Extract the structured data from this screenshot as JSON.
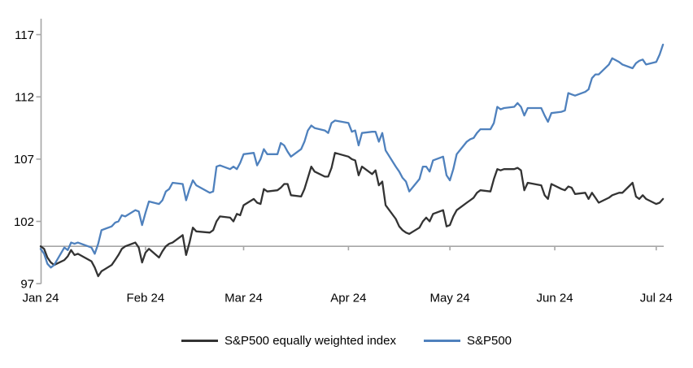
{
  "chart_data": {
    "type": "line",
    "grid": false,
    "legend_position": "bottom-center",
    "x_axis": {
      "tick_labels": [
        "Jan 24",
        "Feb 24",
        "Mar 24",
        "Apr 24",
        "May 24",
        "Jun 24",
        "Jul 24"
      ],
      "tick_day_offsets": [
        0,
        31,
        60,
        91,
        121,
        152,
        182
      ],
      "unit": "days since Jan 1, 2024"
    },
    "y_axis": {
      "tick_labels": [
        "97",
        "102",
        "107",
        "112",
        "117"
      ],
      "ticks": [
        97,
        102,
        107,
        112,
        117
      ],
      "min": 97,
      "max": 117
    },
    "baseline_value": 100,
    "index_base": 100,
    "day_offsets": [
      0,
      1,
      2,
      3,
      4,
      7,
      8,
      9,
      10,
      11,
      15,
      16,
      17,
      18,
      21,
      22,
      23,
      24,
      25,
      28,
      29,
      30,
      31,
      32,
      35,
      36,
      37,
      38,
      39,
      42,
      43,
      44,
      45,
      46,
      50,
      51,
      52,
      53,
      56,
      57,
      58,
      59,
      60,
      63,
      64,
      65,
      66,
      67,
      70,
      71,
      72,
      73,
      74,
      77,
      78,
      79,
      80,
      81,
      84,
      85,
      86,
      87,
      91,
      92,
      93,
      94,
      95,
      98,
      99,
      100,
      101,
      102,
      105,
      106,
      107,
      108,
      109,
      112,
      113,
      114,
      115,
      116,
      119,
      120,
      121,
      122,
      123,
      126,
      127,
      128,
      129,
      130,
      133,
      134,
      135,
      136,
      137,
      140,
      141,
      142,
      143,
      144,
      148,
      149,
      150,
      151,
      154,
      155,
      156,
      157,
      158,
      161,
      162,
      163,
      164,
      165,
      168,
      169,
      171,
      172,
      175,
      176,
      177,
      178,
      179,
      182,
      183,
      184
    ],
    "series": [
      {
        "name": "S&P500 equally weighted index",
        "key": "sp500-equal-weighted",
        "color": "#333333",
        "values": [
          100,
          99.8,
          99.1,
          98.7,
          98.5,
          98.9,
          99.2,
          99.7,
          99.3,
          99.4,
          98.8,
          98.3,
          97.6,
          98.0,
          98.5,
          98.9,
          99.3,
          99.8,
          100.0,
          100.3,
          99.9,
          98.7,
          99.5,
          99.8,
          99.1,
          99.6,
          100.0,
          100.2,
          100.3,
          100.9,
          99.3,
          100.3,
          101.5,
          101.2,
          101.1,
          101.3,
          102.0,
          102.4,
          102.3,
          102.0,
          102.6,
          102.5,
          103.3,
          103.8,
          103.5,
          103.4,
          104.6,
          104.4,
          104.5,
          104.7,
          105.0,
          105.0,
          104.1,
          104.0,
          104.6,
          105.5,
          106.4,
          106.0,
          105.6,
          105.6,
          106.3,
          107.5,
          107.2,
          107.0,
          106.9,
          105.7,
          106.4,
          105.8,
          106.1,
          104.9,
          105.2,
          103.3,
          102.2,
          101.6,
          101.3,
          101.1,
          101.0,
          101.5,
          102.0,
          102.3,
          102.0,
          102.6,
          102.9,
          101.6,
          101.7,
          102.4,
          102.9,
          103.5,
          103.7,
          103.9,
          104.3,
          104.5,
          104.4,
          105.4,
          106.2,
          106.1,
          106.2,
          106.2,
          106.3,
          106.1,
          104.5,
          105.1,
          104.9,
          104.1,
          103.8,
          105.0,
          104.6,
          104.5,
          104.8,
          104.7,
          104.2,
          104.3,
          103.8,
          104.3,
          103.9,
          103.5,
          103.9,
          104.1,
          104.3,
          104.3,
          105.1,
          104.0,
          103.8,
          104.1,
          103.8,
          103.4,
          103.5,
          103.8
        ]
      },
      {
        "name": "S&P500",
        "key": "sp500",
        "color": "#4f81bd",
        "values": [
          99.8,
          99.4,
          98.6,
          98.3,
          98.5,
          99.9,
          99.7,
          100.3,
          100.2,
          100.3,
          99.9,
          99.4,
          100.2,
          101.3,
          101.6,
          101.9,
          102.0,
          102.5,
          102.4,
          102.9,
          102.8,
          101.7,
          102.7,
          103.6,
          103.4,
          103.7,
          104.4,
          104.6,
          105.1,
          105.0,
          103.7,
          104.6,
          105.3,
          104.9,
          104.3,
          104.4,
          106.4,
          106.5,
          106.2,
          106.4,
          106.2,
          106.7,
          107.4,
          107.5,
          106.5,
          107.0,
          107.8,
          107.4,
          107.4,
          108.3,
          108.1,
          107.6,
          107.2,
          107.8,
          108.4,
          109.3,
          109.7,
          109.5,
          109.3,
          109.1,
          109.9,
          110.1,
          109.9,
          109.2,
          109.3,
          108.1,
          109.1,
          109.2,
          109.2,
          108.4,
          109.1,
          107.7,
          106.4,
          106.0,
          105.5,
          105.2,
          104.4,
          105.4,
          106.4,
          106.4,
          106.0,
          106.9,
          107.2,
          105.7,
          105.3,
          106.2,
          107.4,
          108.4,
          108.6,
          108.7,
          109.1,
          109.4,
          109.4,
          109.9,
          111.2,
          111.0,
          111.1,
          111.2,
          111.5,
          111.2,
          110.5,
          111.1,
          111.1,
          110.5,
          110.0,
          110.7,
          110.8,
          110.9,
          112.3,
          112.2,
          112.1,
          112.4,
          112.6,
          113.5,
          113.8,
          113.8,
          114.6,
          115.1,
          114.8,
          114.6,
          114.3,
          114.7,
          114.9,
          115.0,
          114.6,
          114.8,
          115.4,
          116.2
        ]
      }
    ]
  },
  "colors": {
    "axis": "#a6a6a6",
    "text": "#000000",
    "background": "#ffffff"
  }
}
